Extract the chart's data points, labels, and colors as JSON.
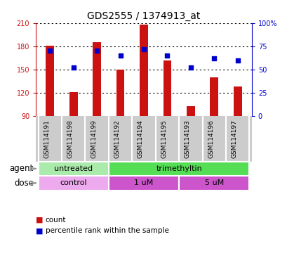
{
  "title": "GDS2555 / 1374913_at",
  "samples": [
    "GSM114191",
    "GSM114198",
    "GSM114199",
    "GSM114192",
    "GSM114194",
    "GSM114195",
    "GSM114193",
    "GSM114196",
    "GSM114197"
  ],
  "count_values": [
    181,
    121,
    185,
    150,
    208,
    162,
    103,
    140,
    128
  ],
  "percentile_values": [
    70,
    52,
    70,
    65,
    72,
    65,
    52,
    62,
    60
  ],
  "count_baseline": 90,
  "count_ylim": [
    90,
    210
  ],
  "count_yticks": [
    90,
    120,
    150,
    180,
    210
  ],
  "percentile_ylim": [
    0,
    100
  ],
  "percentile_yticks": [
    0,
    25,
    50,
    75,
    100
  ],
  "percentile_yticklabels": [
    "0",
    "25",
    "50",
    "75",
    "100%"
  ],
  "bar_color": "#cc1111",
  "dot_color": "#0000cc",
  "agent_groups": [
    {
      "label": "untreated",
      "start": 0,
      "end": 3,
      "color": "#aaeaaa"
    },
    {
      "label": "trimethyltin",
      "start": 3,
      "end": 9,
      "color": "#55dd55"
    }
  ],
  "dose_groups": [
    {
      "label": "control",
      "start": 0,
      "end": 3,
      "color": "#eeaaee"
    },
    {
      "label": "1 uM",
      "start": 3,
      "end": 6,
      "color": "#cc55cc"
    },
    {
      "label": "5 uM",
      "start": 6,
      "end": 9,
      "color": "#cc55cc"
    }
  ],
  "agent_label": "agent",
  "dose_label": "dose",
  "legend_count_label": "count",
  "legend_percentile_label": "percentile rank within the sample",
  "title_fontsize": 10,
  "tick_fontsize": 7,
  "sample_fontsize": 6.5,
  "row_fontsize": 8,
  "bar_width": 0.35,
  "names_bg_color": "#cccccc",
  "names_sep_color": "white"
}
